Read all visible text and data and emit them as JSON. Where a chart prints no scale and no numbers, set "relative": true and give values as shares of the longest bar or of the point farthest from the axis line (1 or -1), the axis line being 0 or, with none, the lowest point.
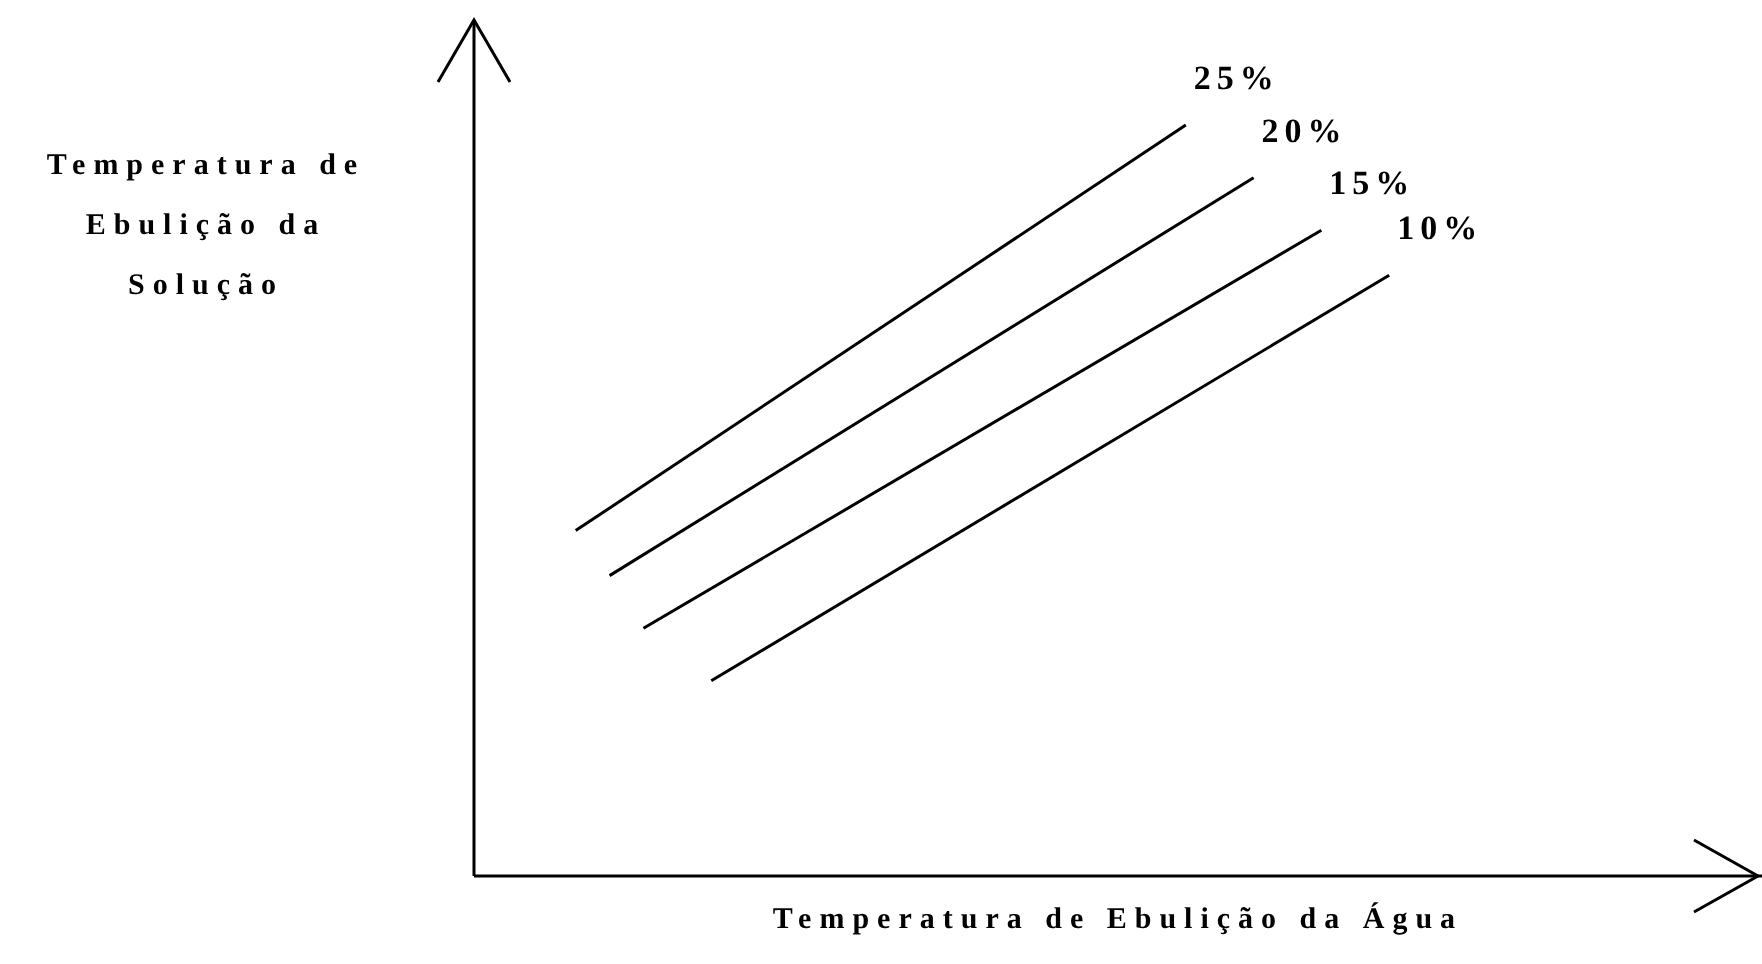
{
  "chart_data": {
    "type": "line",
    "relative": true,
    "xlabel": "Temperatura de Ebulição da Água",
    "ylabel": "Temperatura de Ebulição da Solução",
    "grid": false,
    "legend": false,
    "marker": "none",
    "line_style": "solid",
    "categories": [
      null,
      null,
      null,
      null,
      null,
      null,
      null,
      null,
      null,
      null,
      null,
      null,
      null,
      null,
      null,
      null,
      null,
      null,
      null,
      null,
      null,
      null,
      null,
      null,
      null,
      null,
      null,
      null,
      null,
      null,
      null,
      null,
      null,
      null,
      null,
      null,
      null,
      null
    ],
    "series": [
      {
        "name": "25%",
        "color": "#000000",
        "values": [
          null,
          null,
          null,
          0.46,
          null,
          null,
          null,
          null,
          null,
          null,
          null,
          null,
          null,
          null,
          null,
          null,
          null,
          null,
          null,
          null,
          null,
          1.0,
          null,
          null,
          null,
          null,
          null,
          null,
          null,
          null,
          null,
          null,
          null,
          null,
          null,
          null,
          null,
          null
        ]
      },
      {
        "name": "20%",
        "color": "#000000",
        "values": [
          null,
          null,
          null,
          null,
          0.4,
          null,
          null,
          null,
          null,
          null,
          null,
          null,
          null,
          null,
          null,
          null,
          null,
          null,
          null,
          null,
          null,
          null,
          null,
          0.93,
          null,
          null,
          null,
          null,
          null,
          null,
          null,
          null,
          null,
          null,
          null,
          null,
          null,
          null
        ]
      },
      {
        "name": "15%",
        "color": "#000000",
        "values": [
          null,
          null,
          null,
          null,
          null,
          0.33,
          null,
          null,
          null,
          null,
          null,
          null,
          null,
          null,
          null,
          null,
          null,
          null,
          null,
          null,
          null,
          null,
          null,
          null,
          null,
          0.86,
          null,
          null,
          null,
          null,
          null,
          null,
          null,
          null,
          null,
          null,
          null,
          null
        ]
      },
      {
        "name": "10%",
        "color": "#000000",
        "values": [
          null,
          null,
          null,
          null,
          null,
          null,
          null,
          0.26,
          null,
          null,
          null,
          null,
          null,
          null,
          null,
          null,
          null,
          null,
          null,
          null,
          null,
          null,
          null,
          null,
          null,
          null,
          null,
          0.8,
          null,
          null,
          null,
          null,
          null,
          null,
          null,
          null,
          null,
          null
        ]
      }
    ]
  }
}
